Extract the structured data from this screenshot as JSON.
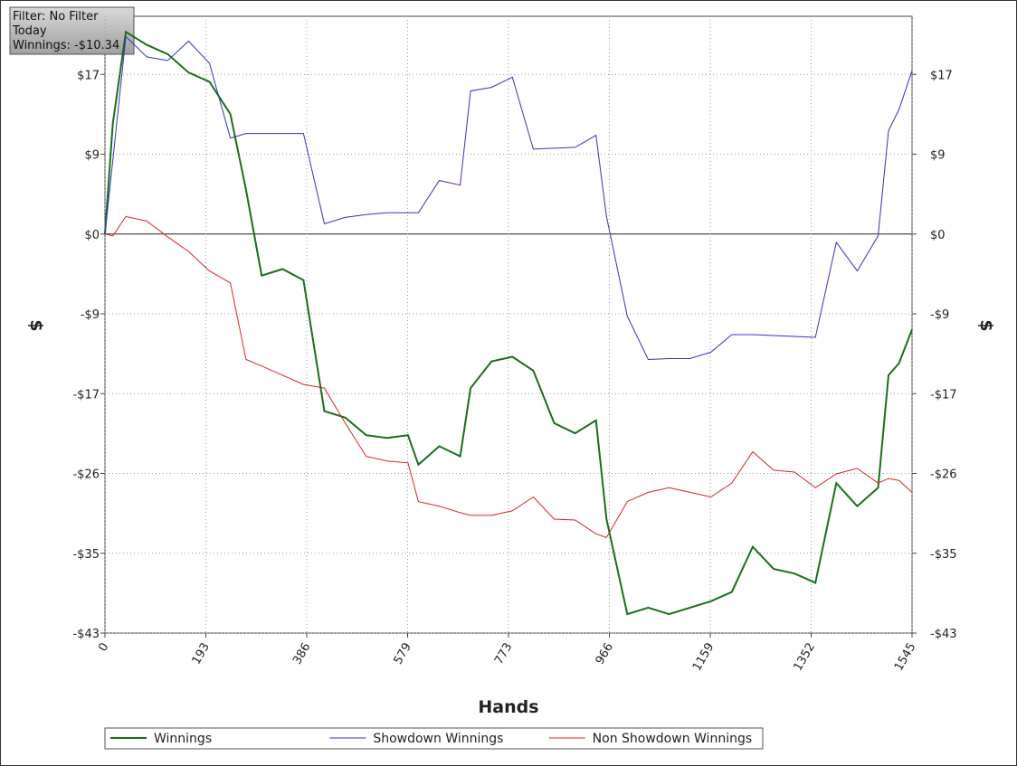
{
  "chart_data": {
    "type": "line",
    "info": [
      "Filter: No Filter",
      "Today",
      "Winnings: -$10.34"
    ],
    "x_label": "Hands",
    "y_label": "$",
    "x": [
      0,
      15,
      40,
      80,
      120,
      160,
      200,
      240,
      270,
      300,
      340,
      380,
      420,
      460,
      500,
      540,
      580,
      600,
      640,
      680,
      700,
      740,
      780,
      820,
      860,
      900,
      940,
      960,
      1000,
      1040,
      1080,
      1120,
      1160,
      1200,
      1240,
      1280,
      1320,
      1360,
      1400,
      1440,
      1480,
      1500,
      1520,
      1545
    ],
    "series": [
      {
        "name": "Winnings",
        "color": "#1a6e1a",
        "values": [
          0,
          12,
          21.9,
          20.5,
          19.5,
          17.5,
          16.5,
          13,
          4.8,
          -4.5,
          -3.8,
          -5.0,
          -19.2,
          -19.9,
          -21.8,
          -22.1,
          -21.8,
          -25,
          -23,
          -24.1,
          -16.7,
          -13.8,
          -13.3,
          -14.8,
          -20.5,
          -21.6,
          -20.2,
          -30.9,
          -41.2,
          -40.5,
          -41.2,
          -40.5,
          -39.8,
          -38.8,
          -33.9,
          -36.3,
          -36.8,
          -37.8,
          -27.0,
          -29.5,
          -27.5,
          -15.3,
          -14.0,
          -10.34
        ]
      },
      {
        "name": "Showdown Winnings",
        "color": "#3333bb",
        "values": [
          0,
          8,
          21.4,
          19.2,
          18.8,
          20.9,
          18.5,
          10.4,
          10.9,
          10.9,
          10.9,
          10.9,
          1.1,
          1.8,
          2.1,
          2.3,
          2.3,
          2.3,
          5.8,
          5.3,
          15.5,
          15.9,
          17.0,
          9.2,
          9.3,
          9.4,
          10.7,
          1.9,
          -8.9,
          -13.6,
          -13.5,
          -13.5,
          -12.8,
          -10.9,
          -10.9,
          -11.0,
          -11.1,
          -11.2,
          -0.9,
          -4.0,
          -0.2,
          11.2,
          13.5,
          17.7
        ]
      },
      {
        "name": "Non Showdown Winnings",
        "color": "#dd2222",
        "values": [
          0,
          -0.2,
          1.9,
          1.4,
          -0.3,
          -1.9,
          -4.0,
          -5.3,
          -13.6,
          -14.3,
          -15.3,
          -16.3,
          -16.7,
          -20.5,
          -24.1,
          -24.6,
          -24.8,
          -29.0,
          -29.5,
          -30.2,
          -30.5,
          -30.5,
          -30.0,
          -28.5,
          -30.9,
          -31.0,
          -32.5,
          -32.9,
          -29.0,
          -28.0,
          -27.5,
          -28.0,
          -28.5,
          -27.0,
          -23.6,
          -25.6,
          -25.8,
          -27.5,
          -26.0,
          -25.4,
          -27.0,
          -26.5,
          -26.7,
          -28.0
        ]
      }
    ],
    "xlim": [
      0,
      1545
    ],
    "xticks": [
      0,
      {
        "value": 193.125,
        "label": "193"
      },
      {
        "value": 386.25,
        "label": "386"
      },
      {
        "value": 579.375,
        "label": "579"
      },
      {
        "value": 772.5,
        "label": "773"
      },
      {
        "value": 965.625,
        "label": "966"
      },
      {
        "value": 1158.75,
        "label": "1159"
      },
      {
        "value": 1351.875,
        "label": "1352"
      },
      1545
    ],
    "ylim": [
      -43.25,
      23.6
    ],
    "yticks": [
      {
        "value": 17.3,
        "label": "$17"
      },
      {
        "value": 8.65,
        "label": "$9"
      },
      {
        "value": 0,
        "label": "$0"
      },
      {
        "value": -8.65,
        "label": "-$9"
      },
      {
        "value": -17.3,
        "label": "-$17"
      },
      {
        "value": -25.95,
        "label": "-$26"
      },
      {
        "value": -34.6,
        "label": "-$35"
      },
      {
        "value": -43.25,
        "label": "-$43"
      }
    ],
    "grid": true
  }
}
